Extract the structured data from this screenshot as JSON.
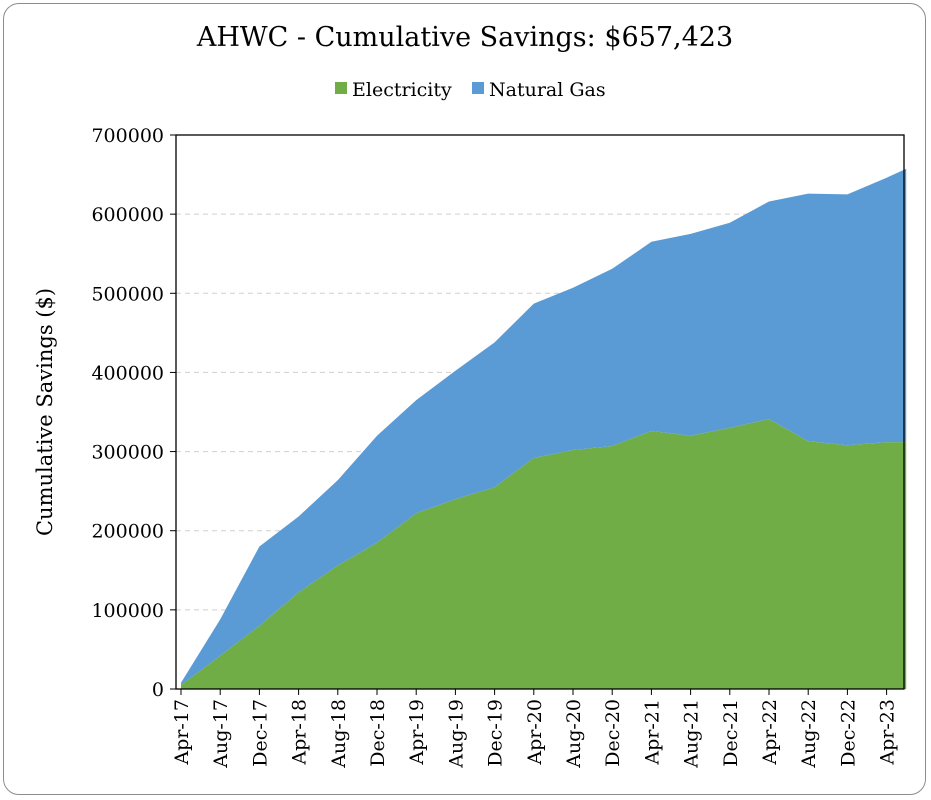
{
  "chart_data": {
    "type": "area",
    "stacked": true,
    "title": "AHWC - Cumulative Savings: $657,423",
    "xlabel": "",
    "ylabel": "Cumulative Savings ($)",
    "ylim": [
      0,
      700000
    ],
    "yticks": [
      0,
      100000,
      200000,
      300000,
      400000,
      500000,
      600000,
      700000
    ],
    "grid": "horizontal-dashed",
    "legend_position": "top",
    "x_tick_labels": [
      "Apr-17",
      "Aug-17",
      "Dec-17",
      "Apr-18",
      "Aug-18",
      "Dec-18",
      "Apr-19",
      "Aug-19",
      "Dec-19",
      "Apr-20",
      "Aug-20",
      "Dec-20",
      "Apr-21",
      "Aug-21",
      "Dec-21",
      "Apr-22",
      "Aug-22",
      "Dec-22",
      "Apr-23"
    ],
    "x": [
      "Apr-17",
      "Aug-17",
      "Dec-17",
      "Apr-18",
      "Aug-18",
      "Dec-18",
      "Apr-19",
      "Aug-19",
      "Dec-19",
      "Apr-20",
      "Aug-20",
      "Dec-20",
      "Apr-21",
      "Aug-21",
      "Dec-21",
      "Apr-22",
      "Aug-22",
      "Dec-22",
      "Apr-23",
      "Jun-23"
    ],
    "series": [
      {
        "name": "Electricity",
        "color": "#70ad47",
        "values": [
          5000,
          42000,
          80000,
          122000,
          156000,
          185000,
          222000,
          240000,
          255000,
          292000,
          302000,
          307000,
          326000,
          320000,
          330000,
          341000,
          313000,
          308000,
          312000,
          312000
        ]
      },
      {
        "name": "Natural Gas",
        "color": "#5b9bd5",
        "values": [
          3000,
          46000,
          100000,
          96000,
          108000,
          135000,
          143000,
          162000,
          183000,
          195000,
          205000,
          224000,
          239000,
          255000,
          259000,
          275000,
          313000,
          317000,
          334000,
          345423
        ]
      }
    ]
  }
}
